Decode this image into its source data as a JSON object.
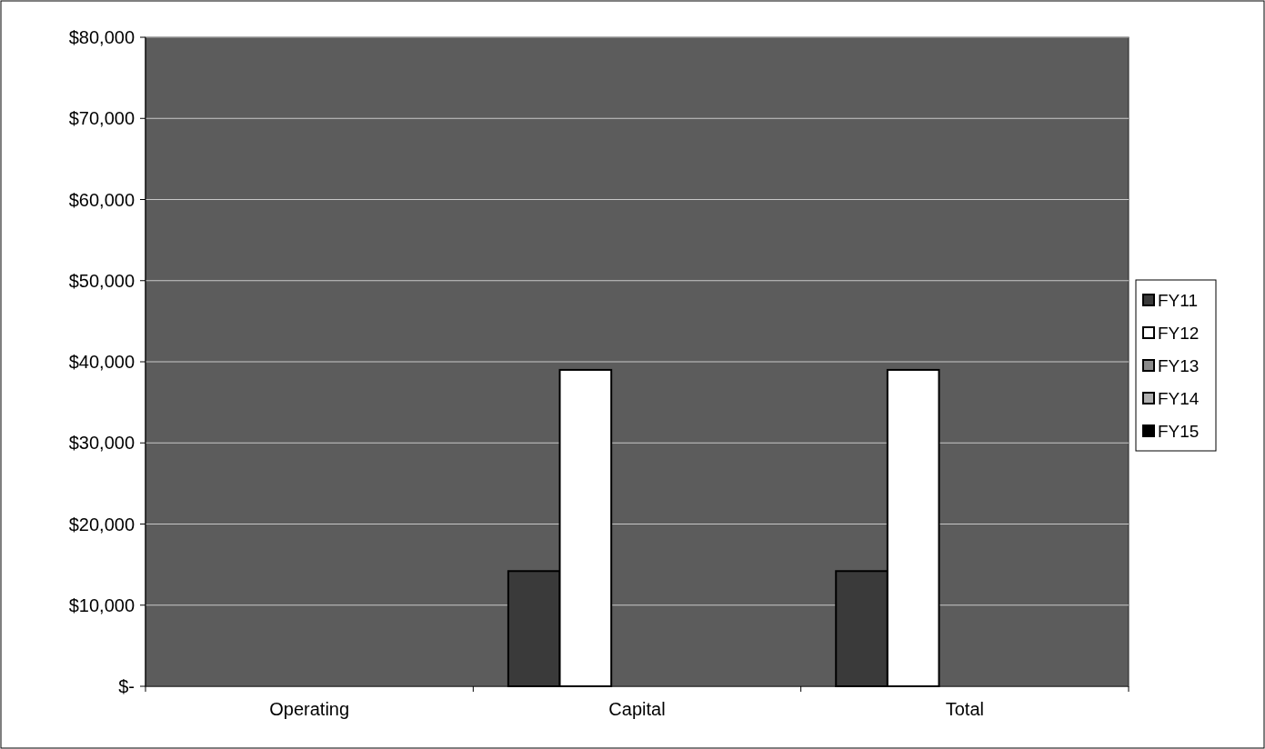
{
  "chart_data": {
    "type": "bar",
    "categories": [
      "Operating",
      "Capital",
      "Total"
    ],
    "series": [
      {
        "name": "FY11",
        "color": "#3a3a3a",
        "values": [
          0,
          14200,
          14200
        ]
      },
      {
        "name": "FY12",
        "color": "#ffffff",
        "values": [
          0,
          39000,
          39000
        ]
      },
      {
        "name": "FY13",
        "color": "#8a8a8a",
        "values": [
          0,
          0,
          0
        ]
      },
      {
        "name": "FY14",
        "color": "#b0b0b0",
        "values": [
          0,
          0,
          0
        ]
      },
      {
        "name": "FY15",
        "color": "#000000",
        "values": [
          0,
          0,
          0
        ]
      }
    ],
    "ylim": [
      0,
      80000
    ],
    "yticks": [
      {
        "value": 0,
        "label": "$-"
      },
      {
        "value": 10000,
        "label": "$10,000"
      },
      {
        "value": 20000,
        "label": "$20,000"
      },
      {
        "value": 30000,
        "label": "$30,000"
      },
      {
        "value": 40000,
        "label": "$40,000"
      },
      {
        "value": 50000,
        "label": "$50,000"
      },
      {
        "value": 60000,
        "label": "$60,000"
      },
      {
        "value": 70000,
        "label": "$70,000"
      },
      {
        "value": 80000,
        "label": "$80,000"
      }
    ],
    "grid": "y",
    "legend": "right"
  }
}
